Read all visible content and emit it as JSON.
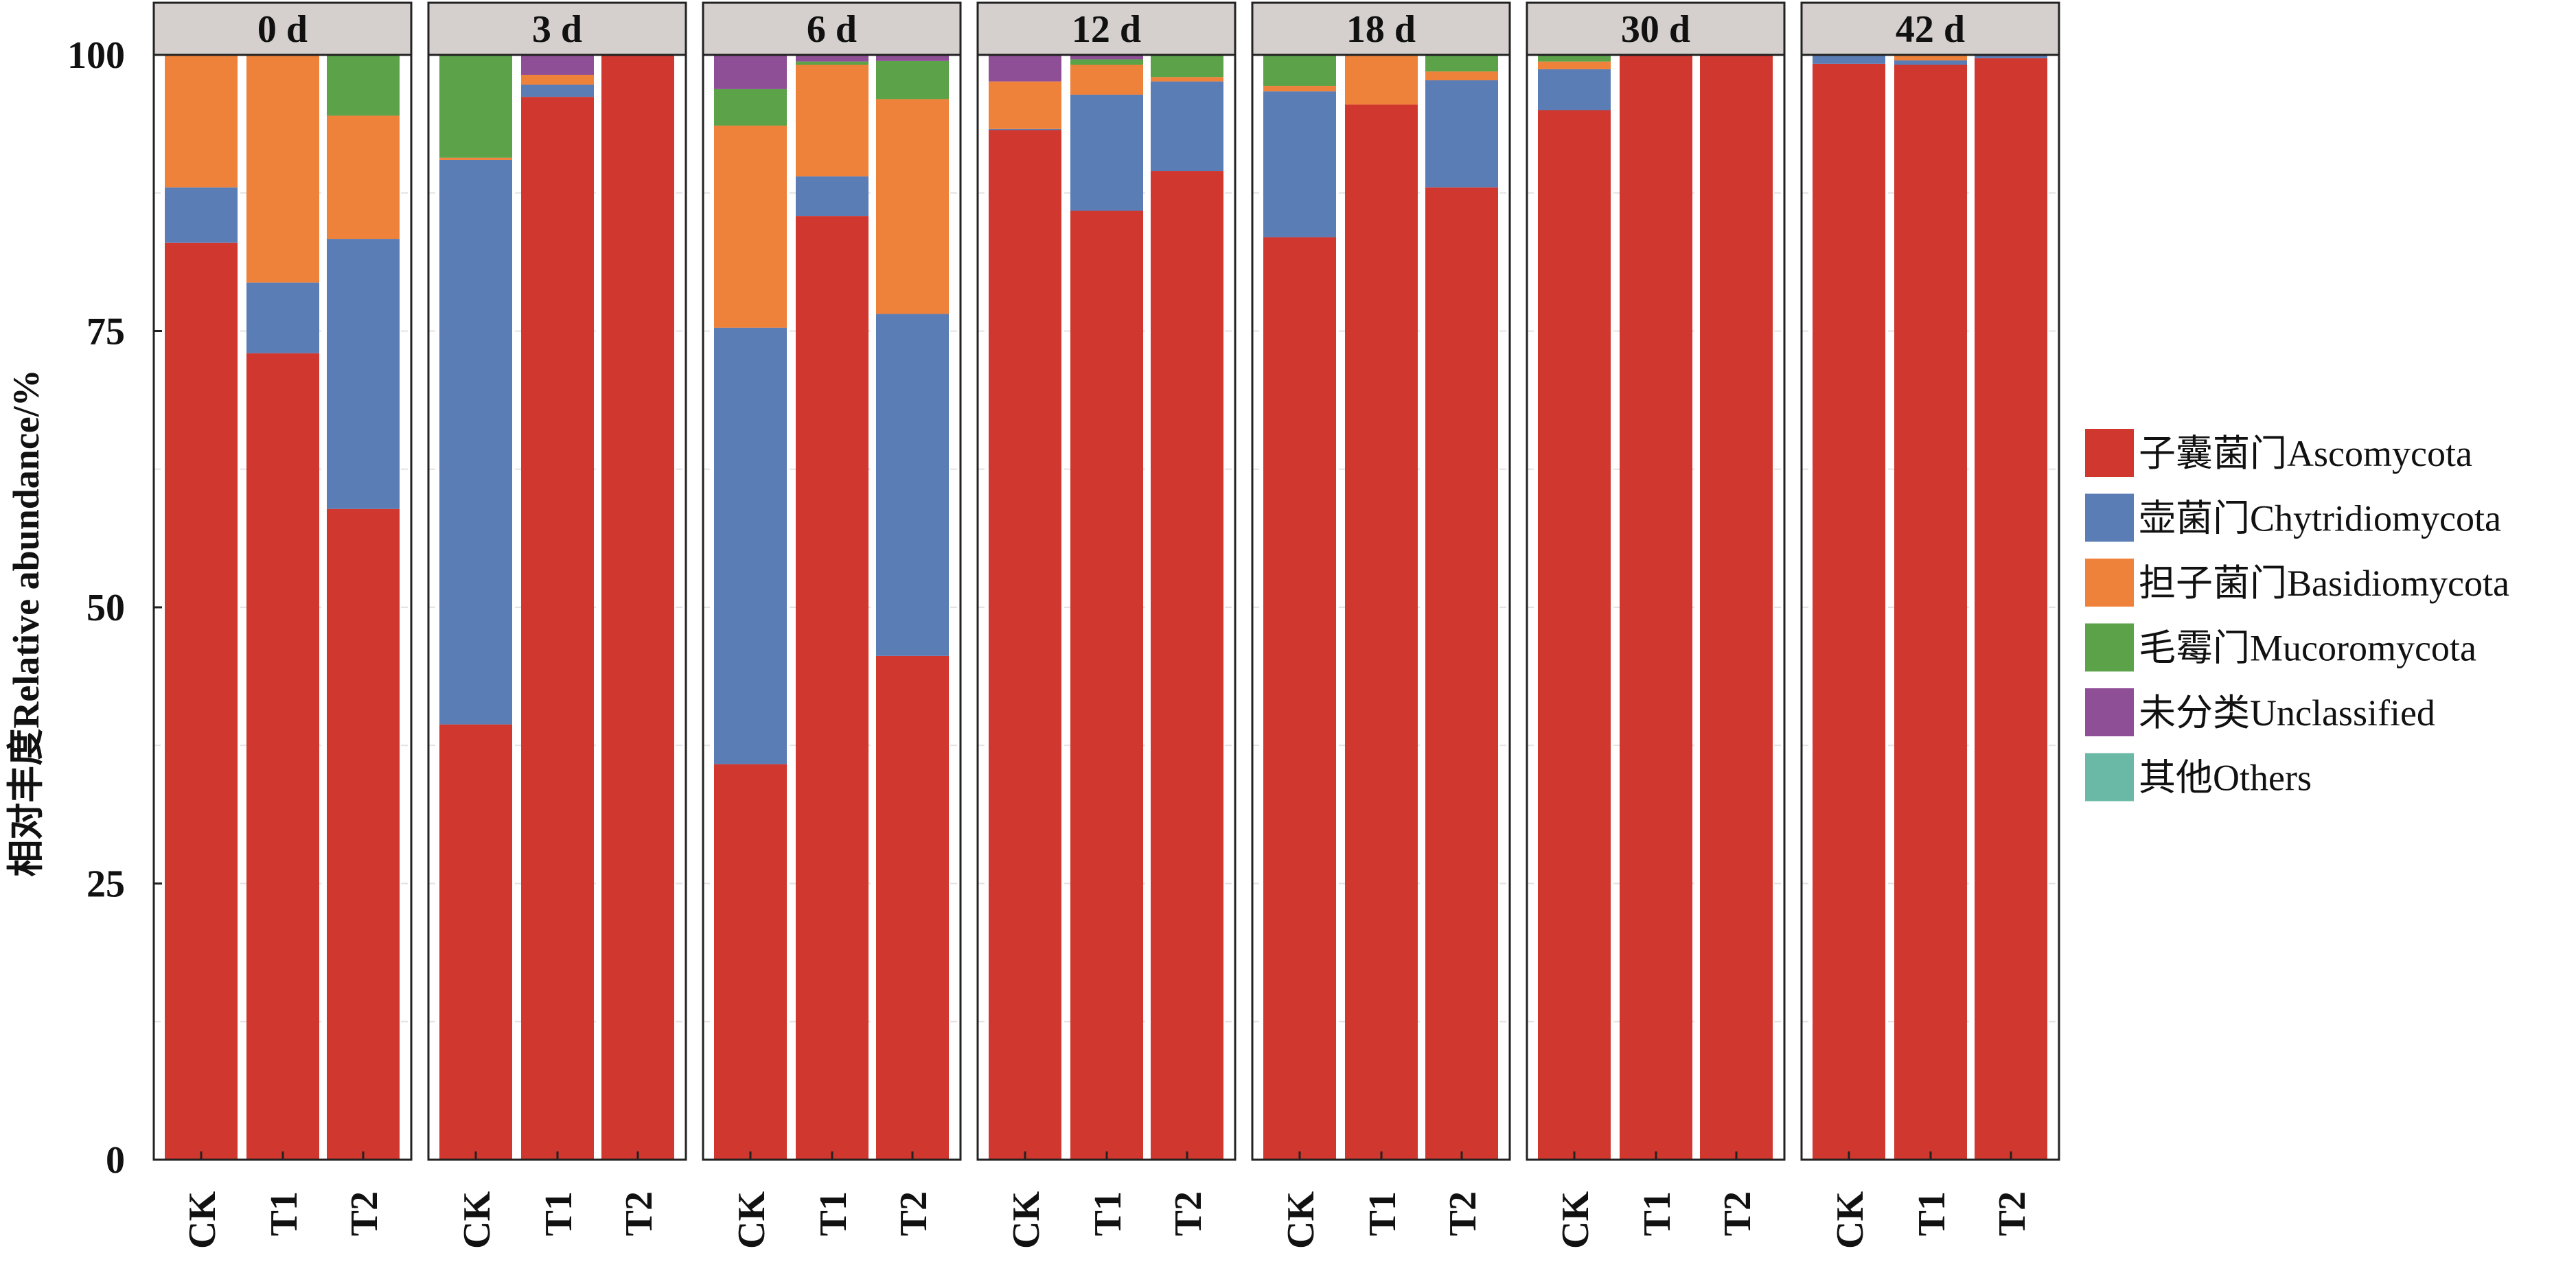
{
  "chart_data": {
    "type": "bar",
    "stacked": true,
    "title": "",
    "xlabel": "",
    "ylabel": "相对丰度Relative abundance/%",
    "ylim": [
      0,
      100
    ],
    "yticks": [
      "0",
      "25",
      "50",
      "75",
      "100"
    ],
    "grid": true,
    "legend_position": "right",
    "facets": [
      "0 d",
      "3 d",
      "6 d",
      "12 d",
      "18 d",
      "30 d",
      "42 d"
    ],
    "categories": [
      "CK",
      "T1",
      "T2"
    ],
    "series": [
      {
        "name": "子囊菌门Ascomycota",
        "color": "#d0372f",
        "values": [
          [
            83.0,
            73.0,
            58.9
          ],
          [
            39.4,
            96.2,
            100.0
          ],
          [
            35.8,
            85.4,
            45.6
          ],
          [
            93.2,
            85.9,
            89.5
          ],
          [
            83.5,
            95.5,
            88.0
          ],
          [
            95.0,
            100.0,
            100.0
          ],
          [
            99.2,
            99.1,
            99.7
          ]
        ]
      },
      {
        "name": "壶菌门Chytridiomycota",
        "color": "#5b7db5",
        "values": [
          [
            5.0,
            6.4,
            24.45
          ],
          [
            51.1,
            1.1,
            0.0
          ],
          [
            39.5,
            3.6,
            30.95
          ],
          [
            0.1,
            10.5,
            8.1
          ],
          [
            13.2,
            0.0,
            9.7
          ],
          [
            3.7,
            0.0,
            0.0
          ],
          [
            0.8,
            0.4,
            0.3
          ]
        ]
      },
      {
        "name": "担子菌门Basidiomycota",
        "color": "#ef823a",
        "values": [
          [
            12.0,
            20.6,
            11.15
          ],
          [
            0.2,
            0.9,
            0.0
          ],
          [
            18.3,
            10.1,
            19.45
          ],
          [
            4.3,
            2.7,
            0.4
          ],
          [
            0.5,
            4.5,
            0.8
          ],
          [
            0.7,
            0.0,
            0.0
          ],
          [
            0.0,
            0.5,
            0.0
          ]
        ]
      },
      {
        "name": "毛霉门Mucoromycota",
        "color": "#5ba249",
        "values": [
          [
            0.0,
            0.0,
            5.5
          ],
          [
            9.3,
            0.0,
            0.0
          ],
          [
            3.3,
            0.3,
            3.45
          ],
          [
            0.0,
            0.5,
            2.0
          ],
          [
            2.8,
            0.0,
            1.5
          ],
          [
            0.6,
            0.0,
            0.0
          ],
          [
            0.0,
            0.0,
            0.0
          ]
        ]
      },
      {
        "name": "未分类Unclassified",
        "color": "#8e4f97",
        "values": [
          [
            0.0,
            0.0,
            0.0
          ],
          [
            0.0,
            1.8,
            0.0
          ],
          [
            3.1,
            0.6,
            0.55
          ],
          [
            2.4,
            0.4,
            0.0
          ],
          [
            0.0,
            0.0,
            0.0
          ],
          [
            0.0,
            0.0,
            0.0
          ],
          [
            0.0,
            0.0,
            0.0
          ]
        ]
      },
      {
        "name": "其他Others",
        "color": "#6ab9a6",
        "values": [
          [
            0.0,
            0.0,
            0.0
          ],
          [
            0.0,
            0.0,
            0.0
          ],
          [
            0.0,
            0.0,
            0.0
          ],
          [
            0.0,
            0.0,
            0.0
          ],
          [
            0.0,
            0.0,
            0.0
          ],
          [
            0.0,
            0.0,
            0.0
          ],
          [
            0.0,
            0.0,
            0.0
          ]
        ]
      }
    ]
  },
  "colors": {
    "strip_fill": "#d5d0ce",
    "panel_border": "#222222",
    "grid": "#e6e2e0"
  }
}
